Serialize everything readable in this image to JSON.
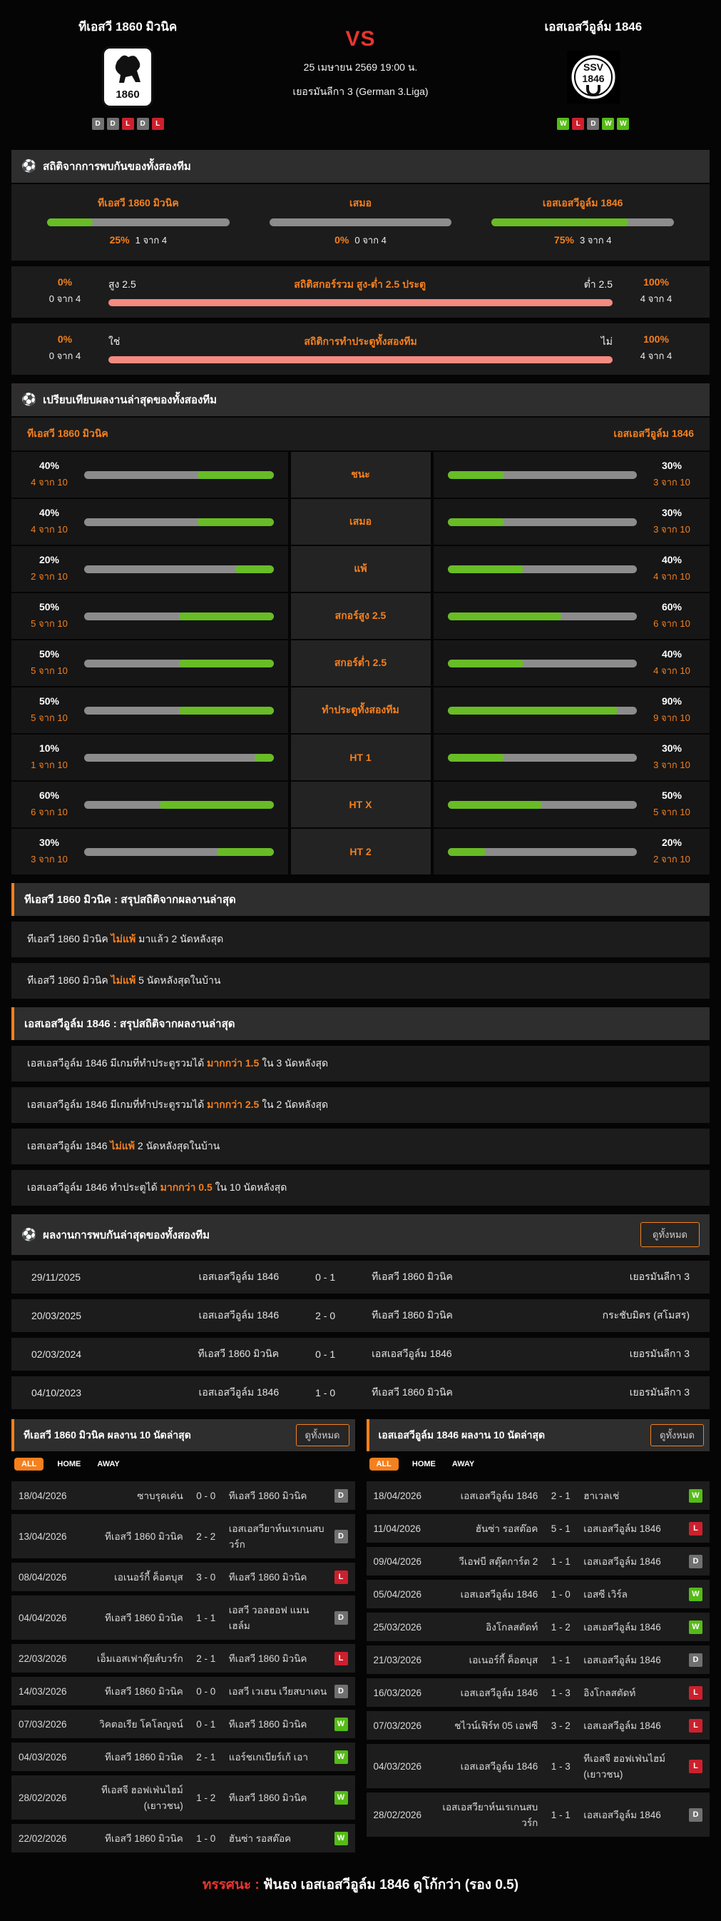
{
  "header": {
    "home_team": "ทีเอสวี 1860 มิวนิค",
    "away_team": "เอสเอสวีอูล์ม 1846",
    "vs": "VS",
    "datetime": "25 เมษายน 2569 19:00 น.",
    "league": "เยอรมันลีกา 3 (German 3.Liga)",
    "home_logo_text": "1860",
    "away_logo_line1": "SSV",
    "away_logo_line2": "1846",
    "home_form": [
      "D",
      "D",
      "L",
      "D",
      "L"
    ],
    "away_form": [
      "W",
      "L",
      "D",
      "W",
      "W"
    ]
  },
  "h2h_stats": {
    "title": "สถิติจากการพบกันของทั้งสองทีม",
    "win_cols": [
      {
        "label": "ทีเอสวี 1860 มิวนิค",
        "pct": 25,
        "pct_label": "25%",
        "count": "1 จาก 4"
      },
      {
        "label": "เสมอ",
        "pct": 0,
        "pct_label": "0%",
        "count": "0 จาก 4"
      },
      {
        "label": "เอสเอสวีอูล์ม 1846",
        "pct": 75,
        "pct_label": "75%",
        "count": "3 จาก 4"
      }
    ],
    "ou_row": {
      "title": "สถิติสกอร์รวม สูง-ต่ำ 2.5 ประตู",
      "left_pct": "0%",
      "left_count": "0 จาก 4",
      "left_label": "สูง 2.5",
      "right_label": "ต่ำ 2.5",
      "right_pct": "100%",
      "right_count": "4 จาก 4"
    },
    "btts_row": {
      "title": "สถิติการทำประตูทั้งสองทีม",
      "left_pct": "0%",
      "left_count": "0 จาก 4",
      "left_label": "ใช่",
      "right_label": "ไม่",
      "right_pct": "100%",
      "right_count": "4 จาก 4"
    }
  },
  "comparison": {
    "title": "เปรียบเทียบผลงานล่าสุดของทั้งสองทีม",
    "home_team": "ทีเอสวี 1860 มิวนิค",
    "away_team": "เอสเอสวีอูล์ม 1846",
    "rows": [
      {
        "label": "ชนะ",
        "home_pct": 40,
        "home_pct_label": "40%",
        "home_count": "4 จาก 10",
        "away_pct": 30,
        "away_pct_label": "30%",
        "away_count": "3 จาก 10"
      },
      {
        "label": "เสมอ",
        "home_pct": 40,
        "home_pct_label": "40%",
        "home_count": "4 จาก 10",
        "away_pct": 30,
        "away_pct_label": "30%",
        "away_count": "3 จาก 10"
      },
      {
        "label": "แพ้",
        "home_pct": 20,
        "home_pct_label": "20%",
        "home_count": "2 จาก 10",
        "away_pct": 40,
        "away_pct_label": "40%",
        "away_count": "4 จาก 10"
      },
      {
        "label": "สกอร์สูง 2.5",
        "home_pct": 50,
        "home_pct_label": "50%",
        "home_count": "5 จาก 10",
        "away_pct": 60,
        "away_pct_label": "60%",
        "away_count": "6 จาก 10"
      },
      {
        "label": "สกอร์ต่ำ 2.5",
        "home_pct": 50,
        "home_pct_label": "50%",
        "home_count": "5 จาก 10",
        "away_pct": 40,
        "away_pct_label": "40%",
        "away_count": "4 จาก 10"
      },
      {
        "label": "ทำประตูทั้งสองทีม",
        "home_pct": 50,
        "home_pct_label": "50%",
        "home_count": "5 จาก 10",
        "away_pct": 90,
        "away_pct_label": "90%",
        "away_count": "9 จาก 10"
      },
      {
        "label": "HT 1",
        "home_pct": 10,
        "home_pct_label": "10%",
        "home_count": "1 จาก 10",
        "away_pct": 30,
        "away_pct_label": "30%",
        "away_count": "3 จาก 10"
      },
      {
        "label": "HT X",
        "home_pct": 60,
        "home_pct_label": "60%",
        "home_count": "6 จาก 10",
        "away_pct": 50,
        "away_pct_label": "50%",
        "away_count": "5 จาก 10"
      },
      {
        "label": "HT 2",
        "home_pct": 30,
        "home_pct_label": "30%",
        "home_count": "3 จาก 10",
        "away_pct": 20,
        "away_pct_label": "20%",
        "away_count": "2 จาก 10"
      }
    ]
  },
  "home_summary": {
    "title": "ทีเอสวี 1860 มิวนิค : สรุปสถิติจากผลงานล่าสุด",
    "lines": [
      {
        "pre": "ทีเอสวี 1860 มิวนิค",
        "hl": "ไม่แพ้",
        "post": "มาแล้ว 2 นัดหลังสุด"
      },
      {
        "pre": "ทีเอสวี 1860 มิวนิค",
        "hl": "ไม่แพ้",
        "post": "5 นัดหลังสุดในบ้าน"
      }
    ]
  },
  "away_summary": {
    "title": "เอสเอสวีอูล์ม 1846 : สรุปสถิติจากผลงานล่าสุด",
    "lines": [
      {
        "pre": "เอสเอสวีอูล์ม 1846 มีเกมที่ทำประตูรวมได้",
        "hl": "มากกว่า 1.5",
        "post": "ใน 3 นัดหลังสุด"
      },
      {
        "pre": "เอสเอสวีอูล์ม 1846 มีเกมที่ทำประตูรวมได้",
        "hl": "มากกว่า 2.5",
        "post": "ใน 2 นัดหลังสุด"
      },
      {
        "pre": "เอสเอสวีอูล์ม 1846",
        "hl": "ไม่แพ้",
        "post": "2 นัดหลังสุดในบ้าน"
      },
      {
        "pre": "เอสเอสวีอูล์ม 1846 ทำประตูได้",
        "hl": "มากกว่า 0.5",
        "post": "ใน 10 นัดหลังสุด"
      }
    ]
  },
  "h2h_matches": {
    "title": "ผลงานการพบกันล่าสุดของทั้งสองทีม",
    "view_all": "ดูทั้งหมด",
    "rows": [
      {
        "date": "29/11/2025",
        "home": "เอสเอสวีอูล์ม 1846",
        "score": "0 - 1",
        "away": "ทีเอสวี 1860 มิวนิค",
        "league": "เยอรมันลีกา 3"
      },
      {
        "date": "20/03/2025",
        "home": "เอสเอสวีอูล์ม 1846",
        "score": "2 - 0",
        "away": "ทีเอสวี 1860 มิวนิค",
        "league": "กระชับมิตร (สโมสร)"
      },
      {
        "date": "02/03/2024",
        "home": "ทีเอสวี 1860 มิวนิค",
        "score": "0 - 1",
        "away": "เอสเอสวีอูล์ม 1846",
        "league": "เยอรมันลีกา 3"
      },
      {
        "date": "04/10/2023",
        "home": "เอสเอสวีอูล์ม 1846",
        "score": "1 - 0",
        "away": "ทีเอสวี 1860 มิวนิค",
        "league": "เยอรมันลีกา 3"
      }
    ]
  },
  "home_form_table": {
    "title": "ทีเอสวี 1860 มิวนิค ผลงาน 10 นัดล่าสุด",
    "view_all": "ดูทั้งหมด",
    "tabs": [
      "ALL",
      "HOME",
      "AWAY"
    ],
    "rows": [
      {
        "date": "18/04/2026",
        "home": "ซาบรุคเค่น",
        "score": "0 - 0",
        "away": "ทีเอสวี 1860 มิวนิค",
        "result": "D"
      },
      {
        "date": "13/04/2026",
        "home": "ทีเอสวี 1860 มิวนิค",
        "score": "2 - 2",
        "away": "เอสเอสวียาห์นเรเกนสบวร์ก",
        "result": "D"
      },
      {
        "date": "08/04/2026",
        "home": "เอเนอร์กี้ ค็อตบุส",
        "score": "3 - 0",
        "away": "ทีเอสวี 1860 มิวนิค",
        "result": "L"
      },
      {
        "date": "04/04/2026",
        "home": "ทีเอสวี 1860 มิวนิค",
        "score": "1 - 1",
        "away": "เอสวี วอลฮอฟ แมนเฮล์ม",
        "result": "D"
      },
      {
        "date": "22/03/2026",
        "home": "เอ็มเอสเฟาดุ๊ยส์บวร์ก",
        "score": "2 - 1",
        "away": "ทีเอสวี 1860 มิวนิค",
        "result": "L"
      },
      {
        "date": "14/03/2026",
        "home": "ทีเอสวี 1860 มิวนิค",
        "score": "0 - 0",
        "away": "เอสวี เวเฮน เวียสบาเดน",
        "result": "D"
      },
      {
        "date": "07/03/2026",
        "home": "วิคตอเรีย โคโลญจน์",
        "score": "0 - 1",
        "away": "ทีเอสวี 1860 มิวนิค",
        "result": "W"
      },
      {
        "date": "04/03/2026",
        "home": "ทีเอสวี 1860 มิวนิค",
        "score": "2 - 1",
        "away": "แอร์ชเกเบียร์เก้ เอา",
        "result": "W"
      },
      {
        "date": "28/02/2026",
        "home": "ทีเอสจี ฮอฟเฟ่นไฮม์ (เยาวชน)",
        "score": "1 - 2",
        "away": "ทีเอสวี 1860 มิวนิค",
        "result": "W"
      },
      {
        "date": "22/02/2026",
        "home": "ทีเอสวี 1860 มิวนิค",
        "score": "1 - 0",
        "away": "ฮันซ่า รอสต๊อค",
        "result": "W"
      }
    ]
  },
  "away_form_table": {
    "title": "เอสเอสวีอูล์ม 1846 ผลงาน 10 นัดล่าสุด",
    "view_all": "ดูทั้งหมด",
    "tabs": [
      "ALL",
      "HOME",
      "AWAY"
    ],
    "rows": [
      {
        "date": "18/04/2026",
        "home": "เอสเอสวีอูล์ม 1846",
        "score": "2 - 1",
        "away": "ฮาเวลเช่",
        "result": "W"
      },
      {
        "date": "11/04/2026",
        "home": "ฮันซ่า รอสต๊อค",
        "score": "5 - 1",
        "away": "เอสเอสวีอูล์ม 1846",
        "result": "L"
      },
      {
        "date": "09/04/2026",
        "home": "วีเอฟบี สตุ๊ตการ์ต 2",
        "score": "1 - 1",
        "away": "เอสเอสวีอูล์ม 1846",
        "result": "D"
      },
      {
        "date": "05/04/2026",
        "home": "เอสเอสวีอูล์ม 1846",
        "score": "1 - 0",
        "away": "เอสซี เวิร์ล",
        "result": "W"
      },
      {
        "date": "25/03/2026",
        "home": "อิงโกลสตัดท์",
        "score": "1 - 2",
        "away": "เอสเอสวีอูล์ม 1846",
        "result": "W"
      },
      {
        "date": "21/03/2026",
        "home": "เอเนอร์กี้ ค็อตบุส",
        "score": "1 - 1",
        "away": "เอสเอสวีอูล์ม 1846",
        "result": "D"
      },
      {
        "date": "16/03/2026",
        "home": "เอสเอสวีอูล์ม 1846",
        "score": "1 - 3",
        "away": "อิงโกลสตัดท์",
        "result": "L"
      },
      {
        "date": "07/03/2026",
        "home": "ชไวน์เฟิร์ท 05 เอฟซี",
        "score": "3 - 2",
        "away": "เอสเอสวีอูล์ม 1846",
        "result": "L"
      },
      {
        "date": "04/03/2026",
        "home": "เอสเอสวีอูล์ม 1846",
        "score": "1 - 3",
        "away": "ทีเอสจี ฮอฟเฟ่นไฮม์ (เยาวชน)",
        "result": "L"
      },
      {
        "date": "28/02/2026",
        "home": "เอสเอสวียาห์นเรเกนสบวร์ก",
        "score": "1 - 1",
        "away": "เอสเอสวีอูล์ม 1846",
        "result": "D"
      }
    ]
  },
  "verdict": {
    "label": "ทรรศนะ :",
    "text": "ฟันธง เอสเอสวีอูล์ม 1846 ดูโก้กว่า (รอง 0.5)",
    "accent_color": "#e8352e",
    "orange_color": "#f5801e",
    "green_color": "#68bc25",
    "red_color": "#cc202d"
  }
}
